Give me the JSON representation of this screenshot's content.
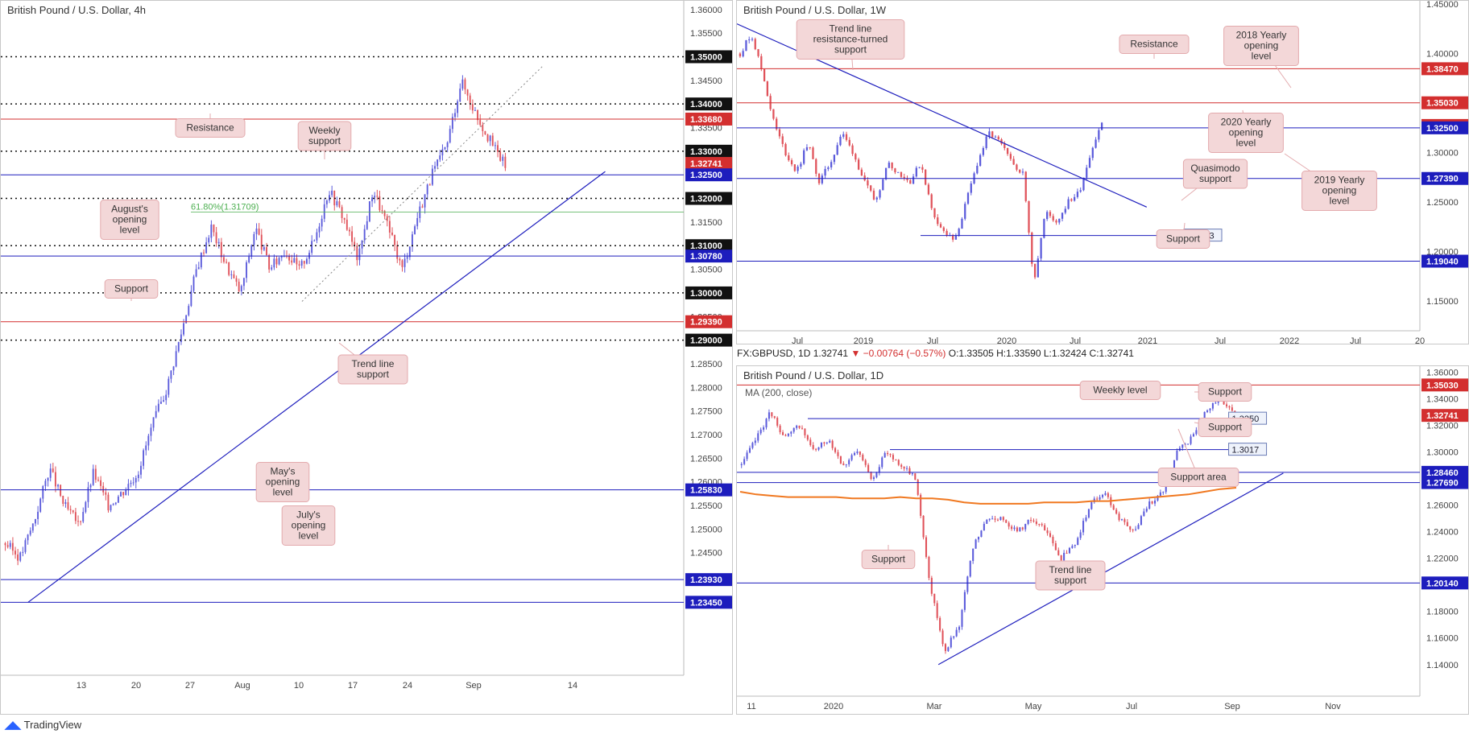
{
  "colors": {
    "up": "#5b5bdb",
    "down": "#e0525a",
    "res": "#d32f2f",
    "sup": "#1d1dbd",
    "ma": "#f07820",
    "note_bg": "#f3d7d8",
    "note_border": "#e3aaad",
    "fib": "#4caf50"
  },
  "footer": {
    "brand": "TradingView"
  },
  "ticker_line": {
    "symbol": "FX:GBPUSD, 1D",
    "last": "1.32741",
    "change": "▼ −0.00764 (−0.57%)",
    "ohlc": "O:1.33505 H:1.33590 L:1.32424 C:1.32741"
  },
  "chart_data": [
    {
      "id": "4h",
      "type": "candlestick",
      "title": "British Pound / U.S. Dollar, 4h",
      "ylim": [
        1.232,
        1.3615
      ],
      "yticks": [
        "1.36000",
        "1.35500",
        "1.35000",
        "1.34500",
        "1.34000",
        "1.33500",
        "1.33000",
        "1.32500",
        "1.32000",
        "1.31500",
        "1.31000",
        "1.30500",
        "1.30000",
        "1.29500",
        "1.29000",
        "1.28500",
        "1.28000",
        "1.27500",
        "1.27000",
        "1.26500",
        "1.26000",
        "1.25500",
        "1.25000",
        "1.24500",
        "1.24000",
        "1.23500"
      ],
      "x_labels": [
        "13",
        "20",
        "27",
        "Aug",
        "10",
        "17",
        "24",
        "Sep",
        "14"
      ],
      "levels": [
        {
          "value": 1.35,
          "style": "dot",
          "label": "1.35000"
        },
        {
          "value": 1.34,
          "style": "dot",
          "label": "1.34000"
        },
        {
          "value": 1.3368,
          "style": "res",
          "label": "1.33680"
        },
        {
          "value": 1.33,
          "style": "dot",
          "label": "1.33000"
        },
        {
          "value": 1.32741,
          "style": "price",
          "label": "1.32741"
        },
        {
          "value": 1.325,
          "style": "sup",
          "label": "1.32500"
        },
        {
          "value": 1.32,
          "style": "dot",
          "label": "1.32000"
        },
        {
          "value": 1.31709,
          "style": "fib",
          "label": "61.80%(1.31709)"
        },
        {
          "value": 1.31,
          "style": "dot",
          "label": "1.31000"
        },
        {
          "value": 1.3078,
          "style": "sup",
          "label": "1.30780"
        },
        {
          "value": 1.3,
          "style": "dot",
          "label": "1.30000"
        },
        {
          "value": 1.2939,
          "style": "res",
          "label": "1.29390"
        },
        {
          "value": 1.29,
          "style": "dot",
          "label": "1.29000"
        },
        {
          "value": 1.2583,
          "style": "sup",
          "label": "1.25830"
        },
        {
          "value": 1.2393,
          "style": "sup",
          "label": "1.23930"
        },
        {
          "value": 1.2345,
          "style": "sup",
          "label": "1.23450"
        }
      ],
      "close_path": [
        1.247,
        1.244,
        1.252,
        1.263,
        1.255,
        1.251,
        1.262,
        1.255,
        1.258,
        1.262,
        1.272,
        1.28,
        1.292,
        1.305,
        1.314,
        1.306,
        1.3,
        1.314,
        1.305,
        1.309,
        1.305,
        1.311,
        1.322,
        1.316,
        1.307,
        1.322,
        1.314,
        1.305,
        1.316,
        1.325,
        1.331,
        1.345,
        1.338,
        1.332,
        1.327
      ],
      "trend_line": {
        "x": [
          0.04,
          0.885
        ],
        "y": [
          1.2345,
          1.3257
        ]
      },
      "notes": [
        "Resistance",
        "Weekly support",
        "August's opening level",
        "Support",
        "Trend line support",
        "May's opening level",
        "July's opening level"
      ]
    },
    {
      "id": "1w",
      "type": "candlestick",
      "title": "British Pound / U.S. Dollar, 1W",
      "ylim": [
        1.125,
        1.45
      ],
      "yticks": [
        "1.45000",
        "1.40000",
        "1.35000",
        "1.30000",
        "1.25000",
        "1.20000",
        "1.15000"
      ],
      "x_labels": [
        "Jul",
        "2019",
        "Jul",
        "2020",
        "Jul",
        "2021",
        "Jul",
        "2022",
        "Jul",
        "20"
      ],
      "levels": [
        {
          "value": 1.3847,
          "style": "res",
          "label": "1.38470"
        },
        {
          "value": 1.3503,
          "style": "res",
          "label": "1.35030"
        },
        {
          "value": 1.32741,
          "style": "price",
          "label": "1.32741"
        },
        {
          "value": 1.325,
          "style": "sup",
          "label": "1.32500"
        },
        {
          "value": 1.2739,
          "style": "sup",
          "label": "1.27390"
        },
        {
          "value": 1.2163,
          "style": "sup_short",
          "label": "1.2163"
        },
        {
          "value": 1.1904,
          "style": "sup",
          "label": "1.19040"
        }
      ],
      "close_path": [
        1.4,
        1.42,
        1.38,
        1.33,
        1.3,
        1.28,
        1.31,
        1.27,
        1.29,
        1.32,
        1.3,
        1.27,
        1.25,
        1.29,
        1.28,
        1.27,
        1.29,
        1.24,
        1.22,
        1.21,
        1.25,
        1.29,
        1.32,
        1.31,
        1.29,
        1.28,
        1.17,
        1.24,
        1.23,
        1.25,
        1.26,
        1.3,
        1.33
      ],
      "trend_line": {
        "x": [
          0.0,
          0.6
        ],
        "y": [
          1.43,
          1.245
        ]
      },
      "notes": [
        "Trend line resistance-turned support",
        "Resistance",
        "2018 Yearly opening level",
        "2020 Yearly opening level",
        "2019 Yearly opening level",
        "Quasimodo support",
        "Support"
      ]
    },
    {
      "id": "1d",
      "type": "candlestick",
      "title": "British Pound / U.S. Dollar, 1D",
      "subtitle": "MA (200, close)",
      "ylim": [
        1.132,
        1.362
      ],
      "yticks": [
        "1.36000",
        "1.34000",
        "1.32000",
        "1.30000",
        "1.28000",
        "1.26000",
        "1.24000",
        "1.22000",
        "1.20000",
        "1.18000",
        "1.16000",
        "1.14000"
      ],
      "x_labels": [
        "11",
        "2020",
        "Mar",
        "May",
        "Jul",
        "Sep",
        "Nov"
      ],
      "levels": [
        {
          "value": 1.3503,
          "style": "res",
          "label": "1.35030"
        },
        {
          "value": 1.32741,
          "style": "price",
          "label": "1.32741"
        },
        {
          "value": 1.325,
          "style": "sup_box",
          "label": "1.3250"
        },
        {
          "value": 1.3017,
          "style": "sup_box",
          "label": "1.3017"
        },
        {
          "value": 1.2846,
          "style": "sup",
          "label": "1.28460"
        },
        {
          "value": 1.2769,
          "style": "sup",
          "label": "1.27690"
        },
        {
          "value": 1.2014,
          "style": "sup",
          "label": "1.20140"
        }
      ],
      "close_path": [
        1.29,
        1.31,
        1.33,
        1.31,
        1.32,
        1.3,
        1.31,
        1.29,
        1.3,
        1.28,
        1.3,
        1.29,
        1.28,
        1.2,
        1.15,
        1.17,
        1.23,
        1.25,
        1.25,
        1.24,
        1.25,
        1.24,
        1.22,
        1.23,
        1.26,
        1.27,
        1.25,
        1.24,
        1.26,
        1.27,
        1.3,
        1.31,
        1.33,
        1.34,
        1.33
      ],
      "ma_line": [
        1.27,
        1.268,
        1.267,
        1.266,
        1.266,
        1.266,
        1.266,
        1.265,
        1.265,
        1.265,
        1.266,
        1.265,
        1.265,
        1.264,
        1.262,
        1.261,
        1.261,
        1.261,
        1.261,
        1.262,
        1.262,
        1.262,
        1.263,
        1.263,
        1.264,
        1.265,
        1.266,
        1.267,
        1.268,
        1.27,
        1.272,
        1.273
      ],
      "trend_line": {
        "x": [
          0.295,
          0.8
        ],
        "y": [
          1.14,
          1.284
        ]
      },
      "notes": [
        "Weekly level",
        "Support",
        "Support",
        "Support area",
        "Support",
        "Trend line support"
      ]
    }
  ]
}
